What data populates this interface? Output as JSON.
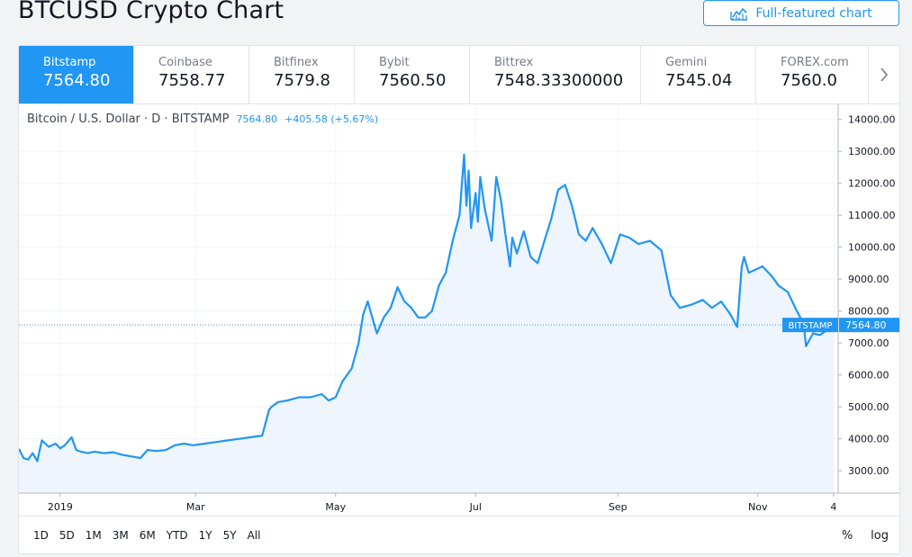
{
  "page": {
    "title": "BTCUSD Crypto Chart"
  },
  "full_featured_button": {
    "label": "Full-featured chart",
    "icon": "chart-icon"
  },
  "exchanges": [
    {
      "name": "Bitstamp",
      "price": "7564.80",
      "active": true
    },
    {
      "name": "Coinbase",
      "price": "7558.77",
      "active": false
    },
    {
      "name": "Bitfinex",
      "price": "7579.8",
      "active": false
    },
    {
      "name": "Bybit",
      "price": "7560.50",
      "active": false
    },
    {
      "name": "Bittrex",
      "price": "7548.33300000",
      "active": false
    },
    {
      "name": "Gemini",
      "price": "7545.04",
      "active": false
    },
    {
      "name": "FOREX.com",
      "price": "7560.0",
      "active": false
    }
  ],
  "next_icon": "chevron-right-icon",
  "legend": {
    "symbol": "Bitcoin / U.S. Dollar · D · BITSTAMP",
    "last": "7564.80",
    "change": "+405.58 (+5.67%)"
  },
  "price_label": {
    "exchange": "BITSTAMP",
    "value": "7564.80"
  },
  "colors": {
    "accent": "#2196f3",
    "line": "#2196f3",
    "area": "#eef5fd"
  },
  "ranges": [
    "1D",
    "5D",
    "1M",
    "3M",
    "6M",
    "YTD",
    "1Y",
    "5Y",
    "All"
  ],
  "scale_options": {
    "percent": "%",
    "log": "log"
  },
  "chart_data": {
    "type": "area",
    "title": "Bitcoin / U.S. Dollar · D · BITSTAMP",
    "xlabel": "",
    "ylabel": "",
    "ylim": [
      2300,
      14500
    ],
    "y_ticks": [
      3000,
      4000,
      5000,
      6000,
      7000,
      8000,
      9000,
      10000,
      11000,
      12000,
      13000,
      14000
    ],
    "y_tick_labels": [
      "3000.00",
      "4000.00",
      "5000.00",
      "6000.00",
      "7000.00",
      "8000.00",
      "9000.00",
      "10000.00",
      "11000.00",
      "12000.00",
      "13000.00",
      "14000.00"
    ],
    "x_tick_labels": [
      "2019",
      "Mar",
      "May",
      "Jul",
      "Sep",
      "Nov",
      "4"
    ],
    "x_tick_dates": [
      "2019-01-01",
      "2019-03-01",
      "2019-05-01",
      "2019-07-01",
      "2019-09-01",
      "2019-11-01",
      "2019-12-04"
    ],
    "x_range": [
      "2018-12-14",
      "2019-12-06"
    ],
    "grid": true,
    "last_value": 7564.8,
    "series": [
      {
        "name": "BITSTAMP",
        "x": [
          "2018-12-14",
          "2018-12-16",
          "2018-12-18",
          "2018-12-20",
          "2018-12-22",
          "2018-12-24",
          "2018-12-27",
          "2018-12-30",
          "2019-01-01",
          "2019-01-03",
          "2019-01-06",
          "2019-01-08",
          "2019-01-10",
          "2019-01-13",
          "2019-01-16",
          "2019-01-20",
          "2019-01-24",
          "2019-01-28",
          "2019-02-01",
          "2019-02-05",
          "2019-02-08",
          "2019-02-12",
          "2019-02-16",
          "2019-02-20",
          "2019-02-24",
          "2019-02-28",
          "2019-03-05",
          "2019-03-10",
          "2019-03-15",
          "2019-03-20",
          "2019-03-25",
          "2019-03-30",
          "2019-04-02",
          "2019-04-03",
          "2019-04-06",
          "2019-04-10",
          "2019-04-15",
          "2019-04-20",
          "2019-04-25",
          "2019-04-28",
          "2019-05-01",
          "2019-05-04",
          "2019-05-08",
          "2019-05-11",
          "2019-05-13",
          "2019-05-15",
          "2019-05-17",
          "2019-05-19",
          "2019-05-22",
          "2019-05-25",
          "2019-05-28",
          "2019-05-31",
          "2019-06-03",
          "2019-06-06",
          "2019-06-09",
          "2019-06-12",
          "2019-06-15",
          "2019-06-18",
          "2019-06-21",
          "2019-06-24",
          "2019-06-26",
          "2019-06-27",
          "2019-06-28",
          "2019-06-29",
          "2019-07-01",
          "2019-07-02",
          "2019-07-03",
          "2019-07-05",
          "2019-07-08",
          "2019-07-10",
          "2019-07-12",
          "2019-07-14",
          "2019-07-16",
          "2019-07-17",
          "2019-07-19",
          "2019-07-22",
          "2019-07-25",
          "2019-07-28",
          "2019-07-31",
          "2019-08-03",
          "2019-08-06",
          "2019-08-09",
          "2019-08-12",
          "2019-08-15",
          "2019-08-18",
          "2019-08-21",
          "2019-08-25",
          "2019-08-29",
          "2019-09-02",
          "2019-09-06",
          "2019-09-10",
          "2019-09-15",
          "2019-09-20",
          "2019-09-24",
          "2019-09-28",
          "2019-10-03",
          "2019-10-08",
          "2019-10-12",
          "2019-10-16",
          "2019-10-20",
          "2019-10-23",
          "2019-10-25",
          "2019-10-26",
          "2019-10-28",
          "2019-10-31",
          "2019-11-03",
          "2019-11-07",
          "2019-11-10",
          "2019-11-14",
          "2019-11-18",
          "2019-11-21",
          "2019-11-22",
          "2019-11-25",
          "2019-11-28",
          "2019-12-01",
          "2019-12-04"
        ],
        "values": [
          3690,
          3400,
          3350,
          3550,
          3300,
          3950,
          3750,
          3850,
          3700,
          3800,
          4050,
          3650,
          3600,
          3550,
          3600,
          3550,
          3580,
          3500,
          3450,
          3400,
          3650,
          3620,
          3650,
          3800,
          3850,
          3800,
          3850,
          3900,
          3950,
          4000,
          4050,
          4100,
          4900,
          5000,
          5150,
          5200,
          5300,
          5300,
          5400,
          5200,
          5300,
          5800,
          6200,
          7000,
          7900,
          8300,
          7800,
          7300,
          7800,
          8100,
          8750,
          8300,
          8100,
          7800,
          7800,
          8000,
          8800,
          9200,
          10200,
          11000,
          12900,
          11300,
          12400,
          10600,
          11700,
          10800,
          12200,
          11200,
          10200,
          12200,
          11500,
          10400,
          9400,
          10300,
          9800,
          10500,
          9700,
          9500,
          10200,
          10900,
          11800,
          11950,
          11300,
          10400,
          10200,
          10600,
          10100,
          9500,
          10400,
          10300,
          10100,
          10200,
          9900,
          8500,
          8100,
          8200,
          8350,
          8100,
          8300,
          7900,
          7500,
          9400,
          9700,
          9200,
          9300,
          9400,
          9100,
          8800,
          8600,
          8000,
          7600,
          6900,
          7300,
          7250,
          7400,
          7564.8
        ]
      }
    ]
  }
}
